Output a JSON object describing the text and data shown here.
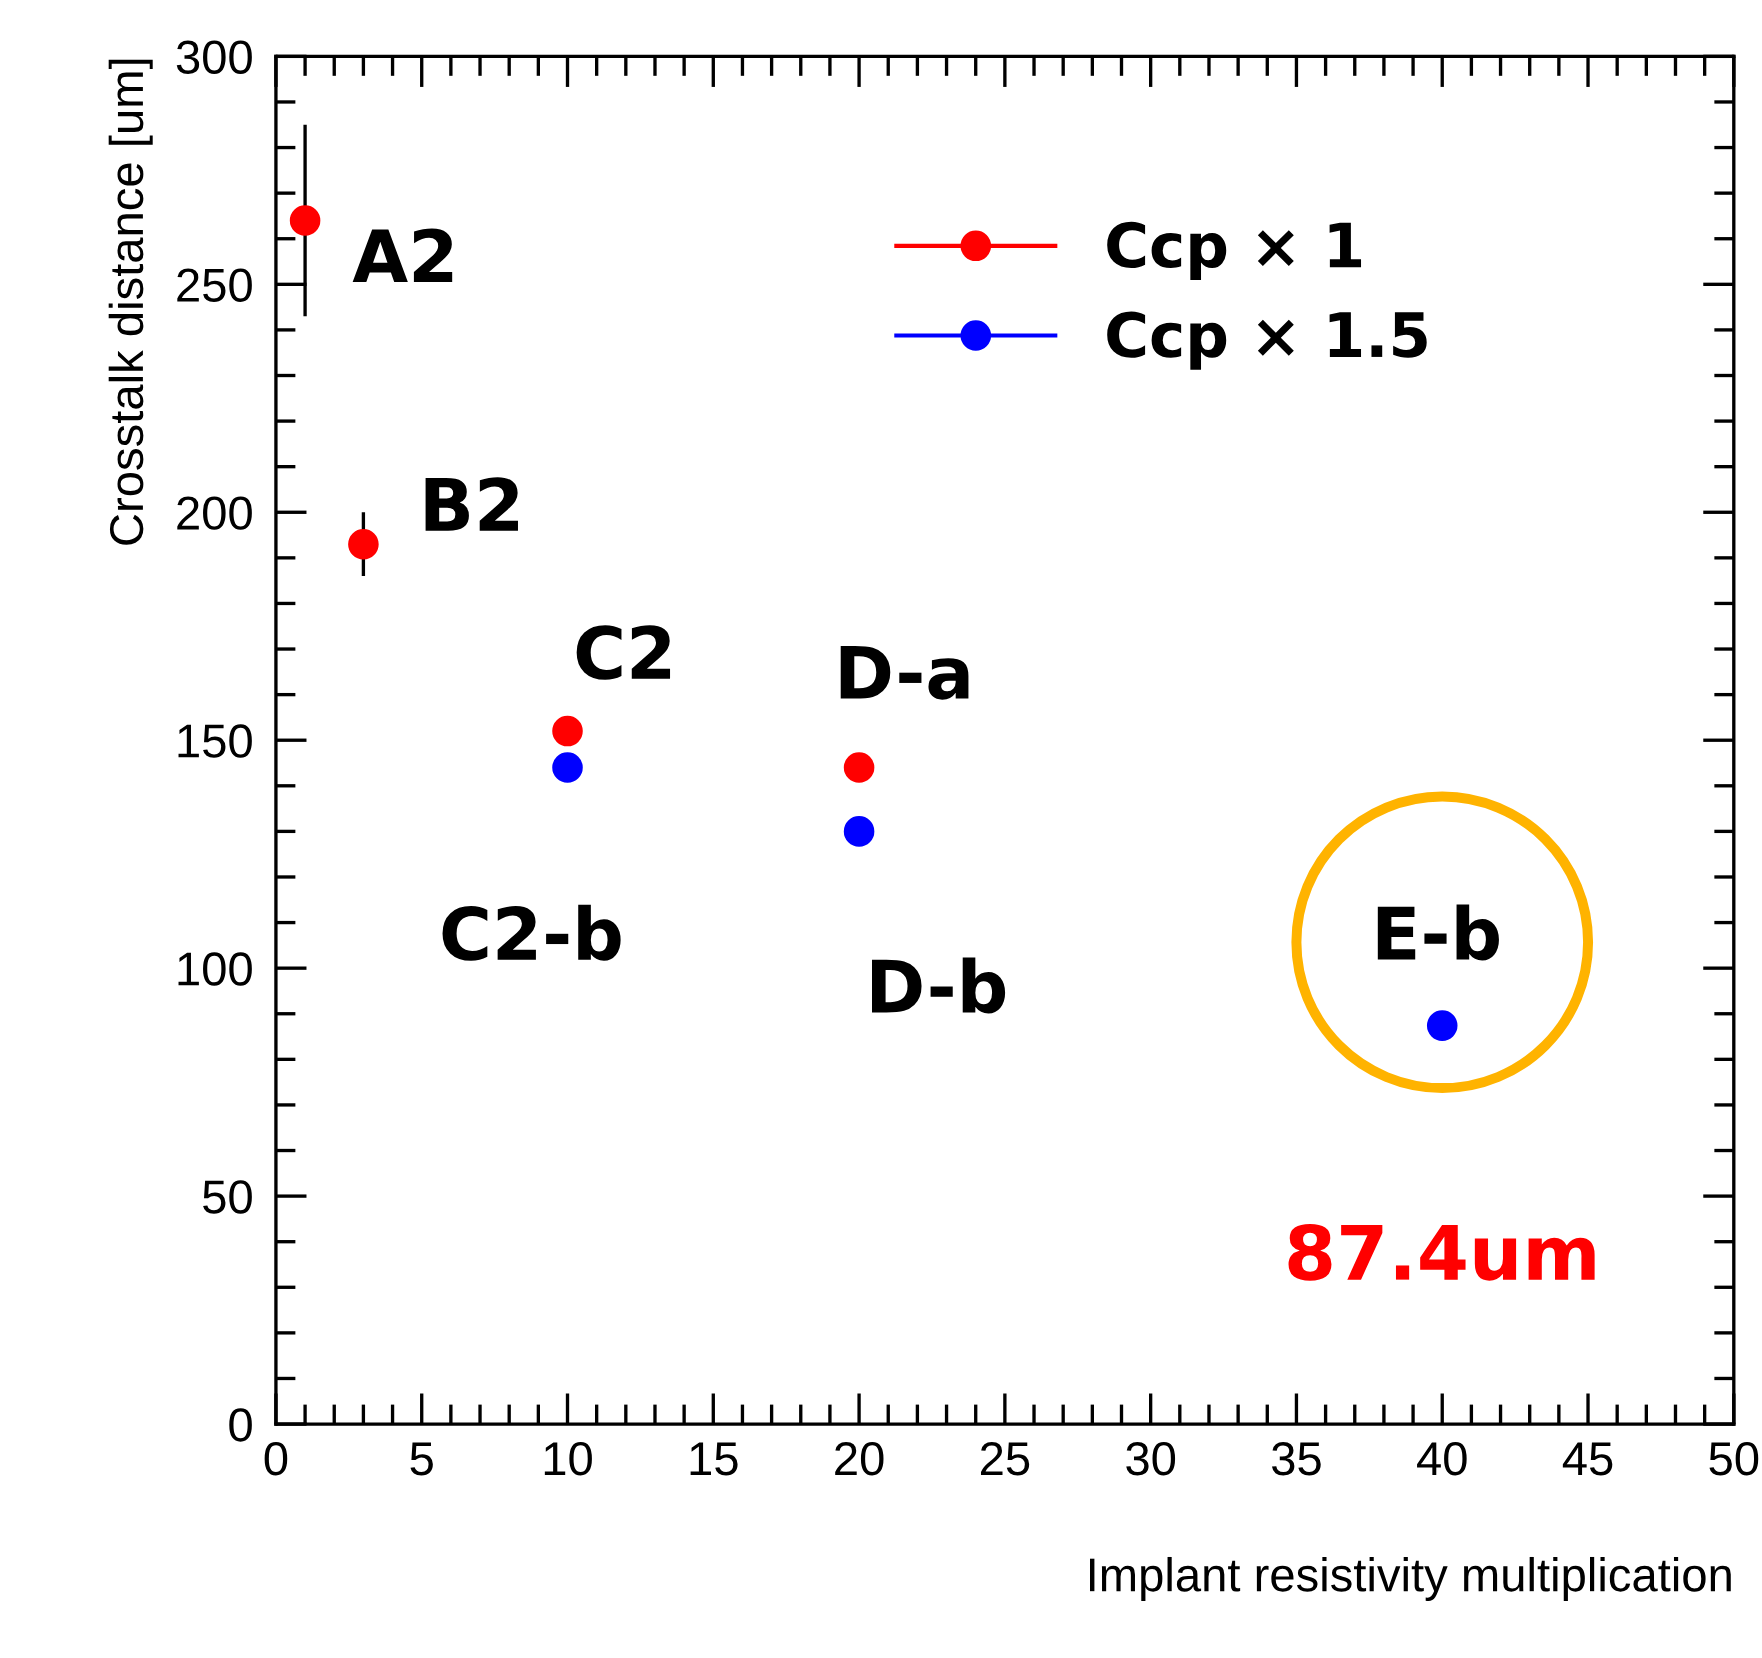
{
  "chart_data": {
    "type": "scatter",
    "xlabel": "Implant resistivity multiplication",
    "ylabel": "Crosstalk distance [um]",
    "xlim": [
      0,
      50
    ],
    "xticks": [
      0,
      5,
      10,
      15,
      20,
      25,
      30,
      35,
      40,
      45,
      50
    ],
    "ylim": [
      0,
      300
    ],
    "yticks": [
      0,
      50,
      100,
      150,
      200,
      250,
      300
    ],
    "series": [
      {
        "name": "Ccp × 1",
        "color": "#ff0000",
        "x": [
          1,
          3,
          10,
          20
        ],
        "values": [
          264,
          193,
          152,
          144
        ],
        "errors": [
          21,
          7,
          null,
          null
        ]
      },
      {
        "name": "Ccp × 1.5",
        "color": "#0000ff",
        "x": [
          10,
          20,
          40
        ],
        "values": [
          144,
          130,
          87.4
        ]
      }
    ],
    "annotations": [
      {
        "text": "A2",
        "x": 1,
        "y": 264
      },
      {
        "text": "B2",
        "x": 3,
        "y": 193
      },
      {
        "text": "C2",
        "x": 10,
        "y": 152
      },
      {
        "text": "C2-b",
        "x": 10,
        "y": 144
      },
      {
        "text": "D-a",
        "x": 20,
        "y": 144
      },
      {
        "text": "D-b",
        "x": 20,
        "y": 130
      },
      {
        "text": "E-b",
        "x": 40,
        "y": 87.4
      },
      {
        "text": "87.4um",
        "x": 40,
        "y": 87.4
      }
    ],
    "legend": "top right",
    "marker": "circle",
    "grid": false
  }
}
